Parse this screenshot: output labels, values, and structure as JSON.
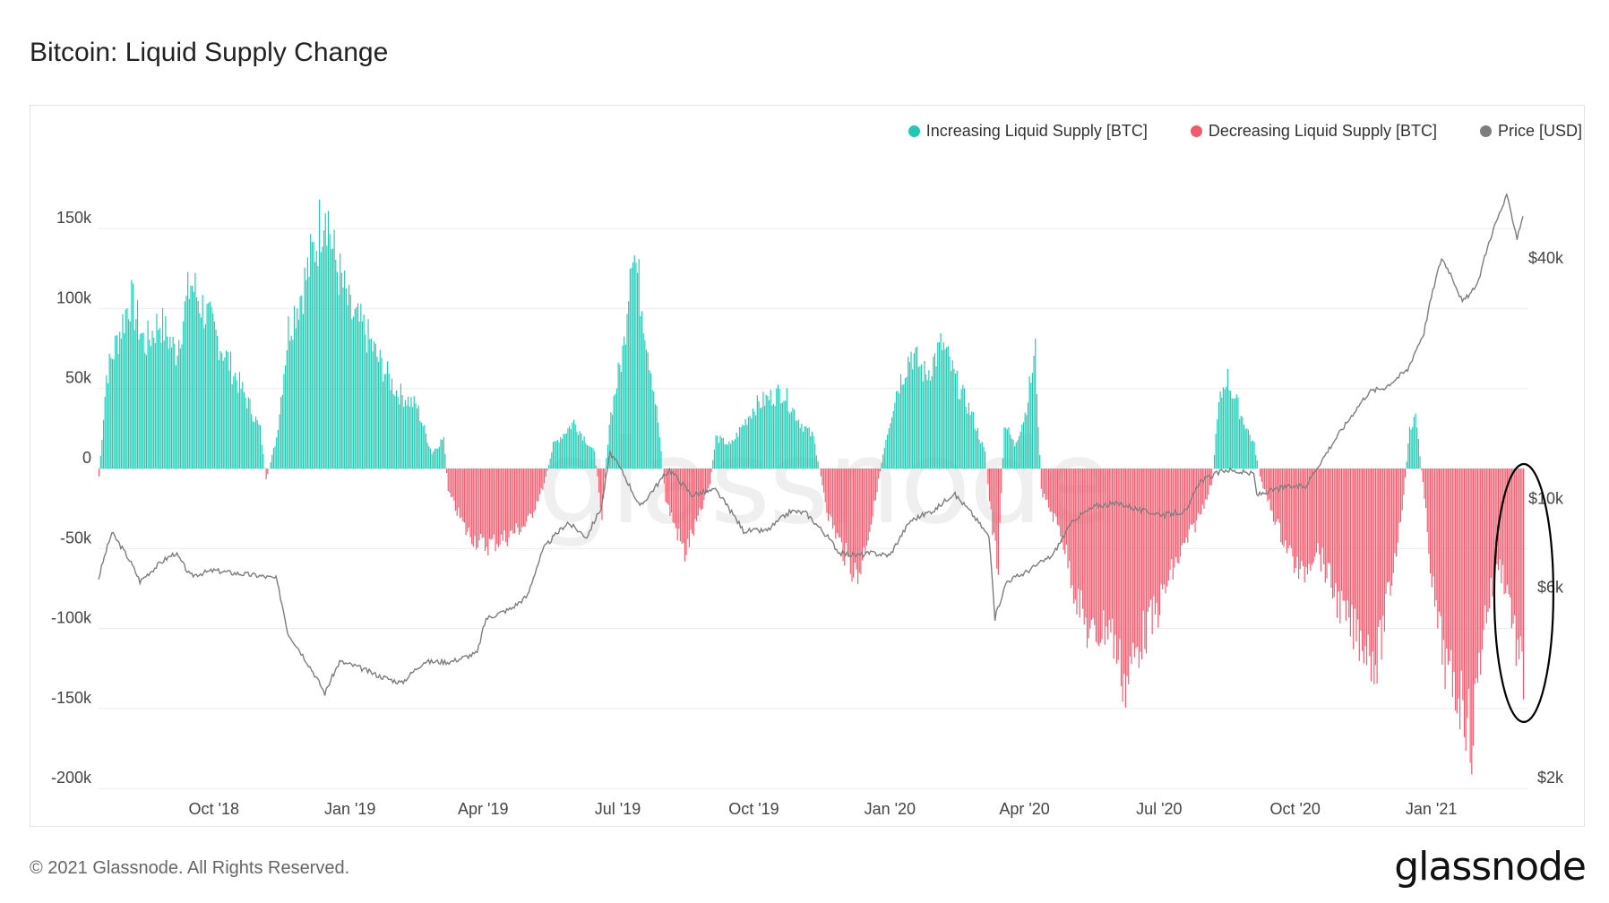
{
  "title": "Bitcoin: Liquid Supply Change",
  "footer": {
    "copyright": "© 2021 Glassnode. All Rights Reserved.",
    "logo": "glassnode"
  },
  "watermark": "glassnode",
  "legend": [
    {
      "label": "Increasing Liquid Supply [BTC]",
      "color": "#21c9b4"
    },
    {
      "label": "Decreasing Liquid Supply [BTC]",
      "color": "#f4586b"
    },
    {
      "label": "Price [USD]",
      "color": "#7d7d7d"
    }
  ],
  "chart_data": {
    "type": "bar",
    "x_range": [
      "2018-07-15",
      "2021-03-04"
    ],
    "x_ticks": [
      "Oct '18",
      "Jan '19",
      "Apr '19",
      "Jul '19",
      "Oct '19",
      "Jan '20",
      "Apr '20",
      "Jul '20",
      "Oct '20",
      "Jan '21"
    ],
    "y_left": {
      "ticks": [
        "150k",
        "100k",
        "50k",
        "0",
        "-50k",
        "-100k",
        "-150k",
        "-200k"
      ],
      "range": [
        -200000,
        200000
      ]
    },
    "y_right": {
      "ticks": [
        "$40k",
        "$10k",
        "$6k",
        "$2k"
      ],
      "scale": "log",
      "range": [
        2000,
        60000
      ]
    },
    "grid": true,
    "legend_position": "top-right",
    "liquid_supply_change_keyframes": [
      [
        "2018-07-15",
        -5000
      ],
      [
        "2018-07-20",
        60000
      ],
      [
        "2018-07-28",
        85000
      ],
      [
        "2018-08-05",
        110000
      ],
      [
        "2018-08-15",
        80000
      ],
      [
        "2018-08-25",
        95000
      ],
      [
        "2018-09-05",
        75000
      ],
      [
        "2018-09-15",
        120000
      ],
      [
        "2018-09-25",
        100000
      ],
      [
        "2018-10-05",
        80000
      ],
      [
        "2018-10-15",
        60000
      ],
      [
        "2018-10-25",
        40000
      ],
      [
        "2018-11-01",
        25000
      ],
      [
        "2018-11-05",
        -8000
      ],
      [
        "2018-11-12",
        20000
      ],
      [
        "2018-11-20",
        90000
      ],
      [
        "2018-12-01",
        120000
      ],
      [
        "2018-12-10",
        150000
      ],
      [
        "2018-12-15",
        175000
      ],
      [
        "2018-12-20",
        140000
      ],
      [
        "2019-01-01",
        100000
      ],
      [
        "2019-01-10",
        90000
      ],
      [
        "2019-01-20",
        70000
      ],
      [
        "2019-02-01",
        50000
      ],
      [
        "2019-02-15",
        40000
      ],
      [
        "2019-02-25",
        10000
      ],
      [
        "2019-03-05",
        20000
      ],
      [
        "2019-03-08",
        -15000
      ],
      [
        "2019-03-20",
        -40000
      ],
      [
        "2019-04-01",
        -50000
      ],
      [
        "2019-04-15",
        -45000
      ],
      [
        "2019-05-01",
        -35000
      ],
      [
        "2019-05-12",
        -10000
      ],
      [
        "2019-05-18",
        15000
      ],
      [
        "2019-06-01",
        30000
      ],
      [
        "2019-06-15",
        10000
      ],
      [
        "2019-06-20",
        -30000
      ],
      [
        "2019-06-25",
        30000
      ],
      [
        "2019-07-05",
        80000
      ],
      [
        "2019-07-10",
        150000
      ],
      [
        "2019-07-18",
        100000
      ],
      [
        "2019-07-28",
        30000
      ],
      [
        "2019-08-02",
        -20000
      ],
      [
        "2019-08-15",
        -55000
      ],
      [
        "2019-08-25",
        -30000
      ],
      [
        "2019-09-01",
        -10000
      ],
      [
        "2019-09-05",
        20000
      ],
      [
        "2019-09-15",
        15000
      ],
      [
        "2019-10-01",
        40000
      ],
      [
        "2019-10-10",
        45000
      ],
      [
        "2019-10-20",
        50000
      ],
      [
        "2019-11-01",
        30000
      ],
      [
        "2019-11-10",
        20000
      ],
      [
        "2019-11-20",
        -30000
      ],
      [
        "2019-12-01",
        -55000
      ],
      [
        "2019-12-10",
        -70000
      ],
      [
        "2019-12-20",
        -30000
      ],
      [
        "2019-12-28",
        15000
      ],
      [
        "2020-01-05",
        50000
      ],
      [
        "2020-01-15",
        75000
      ],
      [
        "2020-01-25",
        60000
      ],
      [
        "2020-02-05",
        80000
      ],
      [
        "2020-02-15",
        55000
      ],
      [
        "2020-02-25",
        35000
      ],
      [
        "2020-03-05",
        10000
      ],
      [
        "2020-03-10",
        -40000
      ],
      [
        "2020-03-14",
        -65000
      ],
      [
        "2020-03-18",
        30000
      ],
      [
        "2020-03-25",
        15000
      ],
      [
        "2020-04-01",
        35000
      ],
      [
        "2020-04-08",
        75000
      ],
      [
        "2020-04-12",
        -15000
      ],
      [
        "2020-04-25",
        -40000
      ],
      [
        "2020-05-05",
        -80000
      ],
      [
        "2020-05-15",
        -110000
      ],
      [
        "2020-05-28",
        -100000
      ],
      [
        "2020-06-08",
        -140000
      ],
      [
        "2020-06-18",
        -110000
      ],
      [
        "2020-06-28",
        -95000
      ],
      [
        "2020-07-08",
        -70000
      ],
      [
        "2020-07-18",
        -50000
      ],
      [
        "2020-07-28",
        -30000
      ],
      [
        "2020-08-05",
        -10000
      ],
      [
        "2020-08-10",
        40000
      ],
      [
        "2020-08-15",
        60000
      ],
      [
        "2020-08-25",
        35000
      ],
      [
        "2020-09-03",
        15000
      ],
      [
        "2020-09-08",
        -10000
      ],
      [
        "2020-09-20",
        -40000
      ],
      [
        "2020-10-05",
        -70000
      ],
      [
        "2020-10-15",
        -50000
      ],
      [
        "2020-10-25",
        -75000
      ],
      [
        "2020-11-05",
        -100000
      ],
      [
        "2020-11-15",
        -110000
      ],
      [
        "2020-11-25",
        -125000
      ],
      [
        "2020-12-05",
        -70000
      ],
      [
        "2020-12-12",
        -25000
      ],
      [
        "2020-12-17",
        25000
      ],
      [
        "2020-12-21",
        35000
      ],
      [
        "2020-12-26",
        -10000
      ],
      [
        "2021-01-03",
        -90000
      ],
      [
        "2021-01-12",
        -135000
      ],
      [
        "2021-01-22",
        -150000
      ],
      [
        "2021-01-28",
        -175000
      ],
      [
        "2021-02-05",
        -100000
      ],
      [
        "2021-02-15",
        -60000
      ],
      [
        "2021-02-22",
        -80000
      ],
      [
        "2021-02-28",
        -120000
      ],
      [
        "2021-03-04",
        -135000
      ]
    ],
    "price_usd_keyframes": [
      [
        "2018-07-15",
        6300
      ],
      [
        "2018-07-24",
        8200
      ],
      [
        "2018-08-05",
        7000
      ],
      [
        "2018-08-12",
        6200
      ],
      [
        "2018-08-28",
        7000
      ],
      [
        "2018-09-05",
        7300
      ],
      [
        "2018-09-15",
        6400
      ],
      [
        "2018-10-01",
        6600
      ],
      [
        "2018-10-15",
        6500
      ],
      [
        "2018-11-01",
        6400
      ],
      [
        "2018-11-12",
        6300
      ],
      [
        "2018-11-20",
        4600
      ],
      [
        "2018-12-01",
        4000
      ],
      [
        "2018-12-15",
        3250
      ],
      [
        "2018-12-25",
        3900
      ],
      [
        "2019-01-05",
        3800
      ],
      [
        "2019-01-20",
        3600
      ],
      [
        "2019-02-05",
        3450
      ],
      [
        "2019-02-20",
        3900
      ],
      [
        "2019-03-10",
        3900
      ],
      [
        "2019-03-28",
        4100
      ],
      [
        "2019-04-03",
        5000
      ],
      [
        "2019-04-20",
        5300
      ],
      [
        "2019-05-01",
        5700
      ],
      [
        "2019-05-12",
        7500
      ],
      [
        "2019-05-28",
        8700
      ],
      [
        "2019-06-10",
        8000
      ],
      [
        "2019-06-20",
        9500
      ],
      [
        "2019-06-26",
        13000
      ],
      [
        "2019-07-05",
        11500
      ],
      [
        "2019-07-16",
        9500
      ],
      [
        "2019-08-05",
        11800
      ],
      [
        "2019-08-20",
        10200
      ],
      [
        "2019-09-05",
        10500
      ],
      [
        "2019-09-24",
        8300
      ],
      [
        "2019-10-10",
        8300
      ],
      [
        "2019-10-26",
        9300
      ],
      [
        "2019-11-05",
        9200
      ],
      [
        "2019-11-20",
        8000
      ],
      [
        "2019-11-28",
        7300
      ],
      [
        "2019-12-10",
        7200
      ],
      [
        "2019-12-20",
        7300
      ],
      [
        "2020-01-01",
        7200
      ],
      [
        "2020-01-15",
        8800
      ],
      [
        "2020-02-01",
        9400
      ],
      [
        "2020-02-13",
        10300
      ],
      [
        "2020-02-25",
        9200
      ],
      [
        "2020-03-08",
        8000
      ],
      [
        "2020-03-12",
        5000
      ],
      [
        "2020-03-20",
        6200
      ],
      [
        "2020-04-01",
        6500
      ],
      [
        "2020-04-20",
        7200
      ],
      [
        "2020-05-05",
        8900
      ],
      [
        "2020-05-20",
        9600
      ],
      [
        "2020-06-05",
        9700
      ],
      [
        "2020-06-20",
        9300
      ],
      [
        "2020-07-05",
        9100
      ],
      [
        "2020-07-20",
        9300
      ],
      [
        "2020-07-28",
        11000
      ],
      [
        "2020-08-15",
        11800
      ],
      [
        "2020-09-03",
        11500
      ],
      [
        "2020-09-05",
        10200
      ],
      [
        "2020-09-25",
        10700
      ],
      [
        "2020-10-08",
        10700
      ],
      [
        "2020-10-21",
        12800
      ],
      [
        "2020-11-05",
        15500
      ],
      [
        "2020-11-20",
        18500
      ],
      [
        "2020-12-01",
        19000
      ],
      [
        "2020-12-16",
        21000
      ],
      [
        "2020-12-27",
        26000
      ],
      [
        "2021-01-08",
        40000
      ],
      [
        "2021-01-15",
        36000
      ],
      [
        "2021-01-22",
        31000
      ],
      [
        "2021-02-01",
        34000
      ],
      [
        "2021-02-10",
        45000
      ],
      [
        "2021-02-21",
        57000
      ],
      [
        "2021-02-28",
        45000
      ],
      [
        "2021-03-04",
        51000
      ]
    ],
    "annotation": {
      "shape": "ellipse",
      "color": "#000000",
      "from": "2021-02-15",
      "to": "2021-03-10",
      "y_range": [
        -150000,
        0
      ]
    }
  }
}
